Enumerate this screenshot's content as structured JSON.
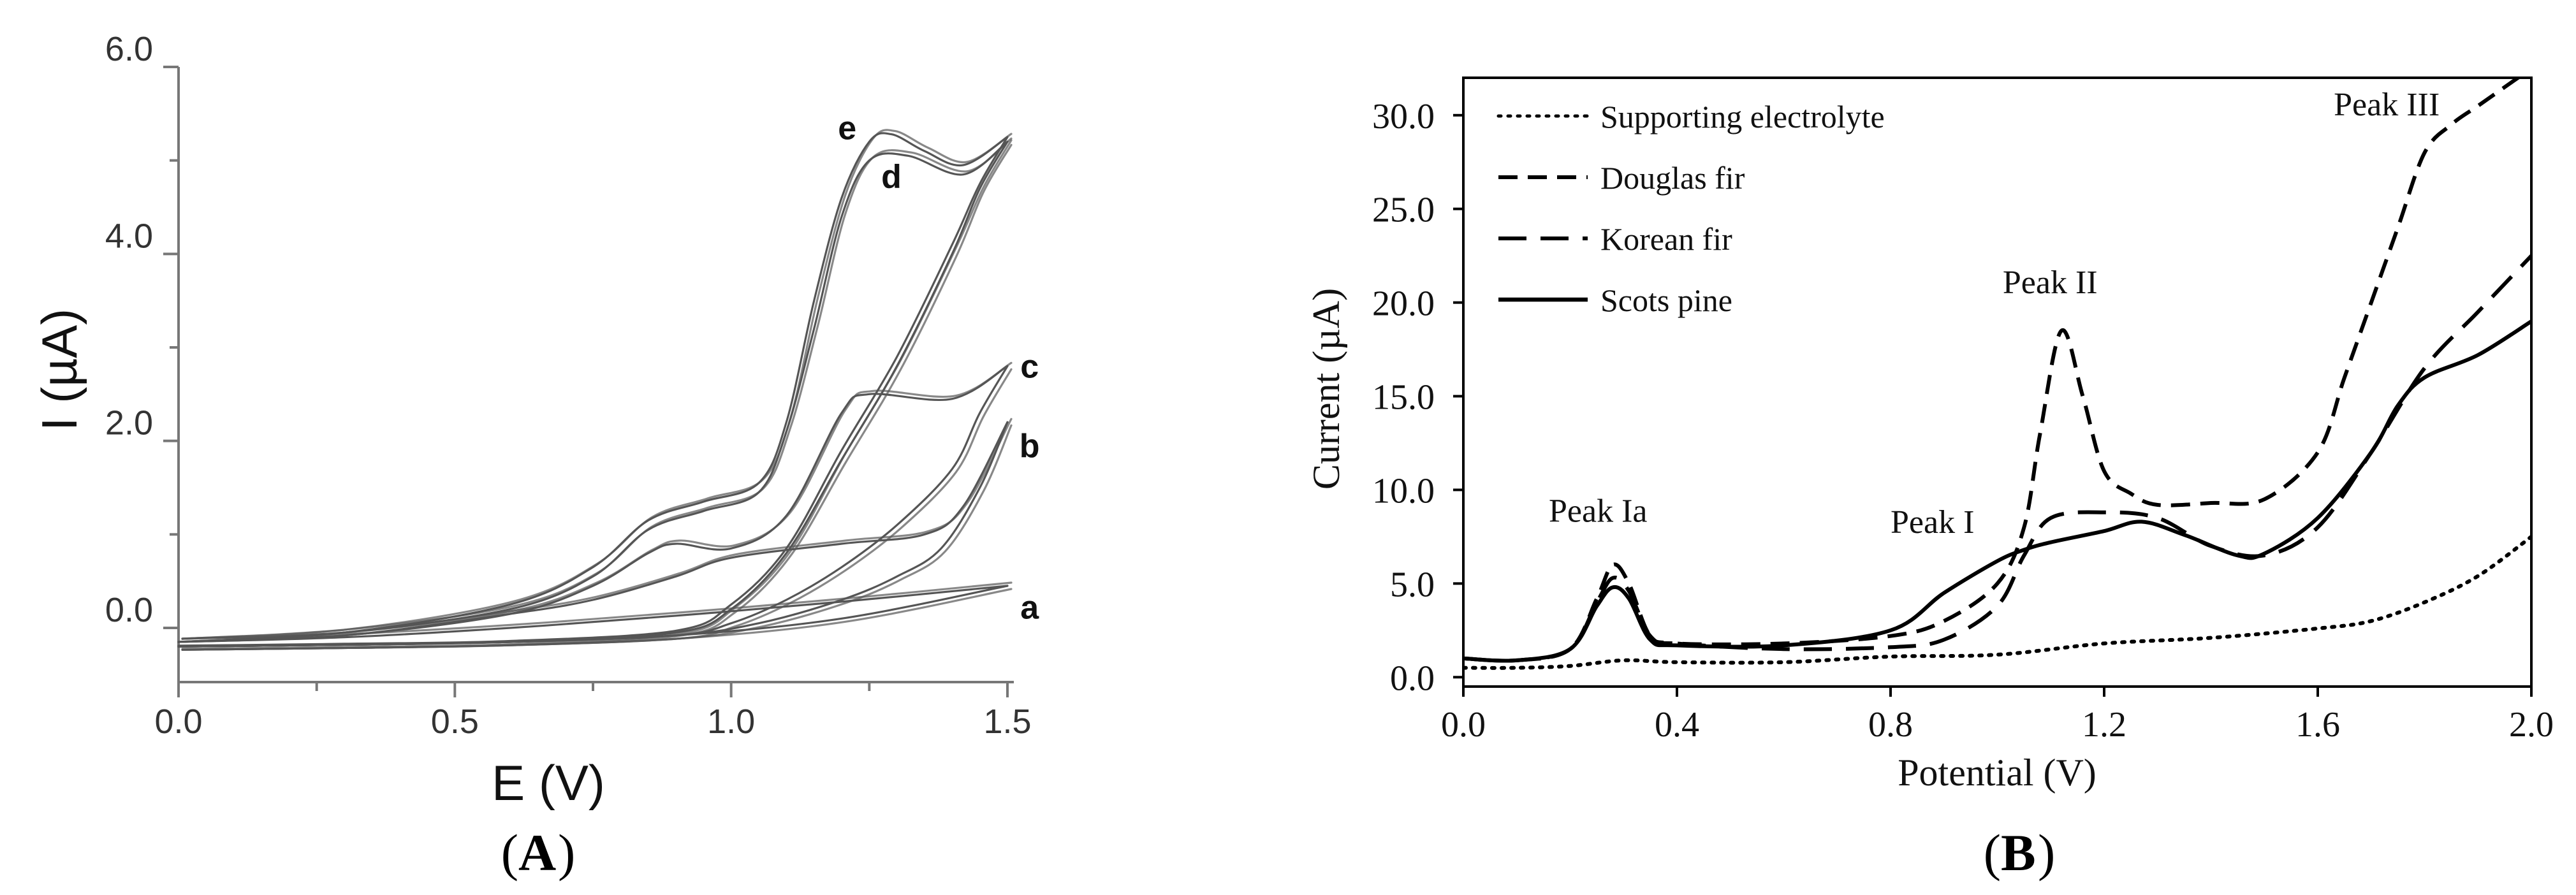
{
  "chart_data": [
    {
      "panel_label": "A",
      "type": "line",
      "title": "",
      "xlabel": "E (V)",
      "ylabel": "I (µA)",
      "xlim": [
        0.0,
        1.5
      ],
      "ylim": [
        -0.6,
        6.0
      ],
      "x_ticks": [
        0.0,
        0.25,
        0.5,
        0.75,
        1.0,
        1.25,
        1.5
      ],
      "x_tick_labels": [
        "0.0",
        "0.5",
        "1.0",
        "1.5"
      ],
      "x_tick_label_values": [
        0.0,
        0.5,
        1.0,
        1.5
      ],
      "y_ticks": [
        0.0,
        1.0,
        2.0,
        3.0,
        4.0,
        5.0,
        6.0
      ],
      "y_tick_labels": [
        "0.0",
        "2.0",
        "4.0",
        "6.0"
      ],
      "y_tick_label_values": [
        0.0,
        2.0,
        4.0,
        6.0
      ],
      "grid": false,
      "series": [
        {
          "name": "a",
          "forward": [
            [
              0.0,
              -0.15
            ],
            [
              0.3,
              -0.1
            ],
            [
              0.6,
              0.0
            ],
            [
              0.9,
              0.13
            ],
            [
              1.2,
              0.28
            ],
            [
              1.5,
              0.45
            ]
          ],
          "reverse": [
            [
              1.5,
              0.45
            ],
            [
              1.2,
              0.1
            ],
            [
              0.9,
              -0.08
            ],
            [
              0.6,
              -0.15
            ],
            [
              0.3,
              -0.18
            ],
            [
              0.0,
              -0.2
            ]
          ]
        },
        {
          "name": "b",
          "forward": [
            [
              0.0,
              -0.15
            ],
            [
              0.3,
              -0.08
            ],
            [
              0.6,
              0.15
            ],
            [
              0.75,
              0.3
            ],
            [
              0.9,
              0.55
            ],
            [
              1.0,
              0.75
            ],
            [
              1.2,
              0.9
            ],
            [
              1.35,
              1.0
            ],
            [
              1.42,
              1.3
            ],
            [
              1.5,
              2.2
            ]
          ],
          "reverse": [
            [
              1.5,
              2.2
            ],
            [
              1.45,
              1.5
            ],
            [
              1.38,
              0.85
            ],
            [
              1.3,
              0.55
            ],
            [
              1.2,
              0.3
            ],
            [
              1.05,
              0.05
            ],
            [
              0.9,
              -0.08
            ],
            [
              0.6,
              -0.15
            ],
            [
              0.3,
              -0.18
            ],
            [
              0.0,
              -0.2
            ]
          ]
        },
        {
          "name": "c",
          "forward": [
            [
              0.0,
              -0.15
            ],
            [
              0.3,
              -0.08
            ],
            [
              0.6,
              0.15
            ],
            [
              0.75,
              0.45
            ],
            [
              0.85,
              0.8
            ],
            [
              0.9,
              0.9
            ],
            [
              1.0,
              0.85
            ],
            [
              1.1,
              1.2
            ],
            [
              1.2,
              2.3
            ],
            [
              1.25,
              2.5
            ],
            [
              1.4,
              2.45
            ],
            [
              1.5,
              2.8
            ]
          ],
          "reverse": [
            [
              1.5,
              2.8
            ],
            [
              1.45,
              2.3
            ],
            [
              1.4,
              1.7
            ],
            [
              1.3,
              1.1
            ],
            [
              1.2,
              0.65
            ],
            [
              1.1,
              0.3
            ],
            [
              1.0,
              0.05
            ],
            [
              0.9,
              -0.08
            ],
            [
              0.6,
              -0.15
            ],
            [
              0.3,
              -0.18
            ],
            [
              0.0,
              -0.2
            ]
          ]
        },
        {
          "name": "d",
          "forward": [
            [
              0.0,
              -0.15
            ],
            [
              0.3,
              -0.05
            ],
            [
              0.6,
              0.2
            ],
            [
              0.75,
              0.55
            ],
            [
              0.85,
              1.05
            ],
            [
              0.95,
              1.25
            ],
            [
              1.05,
              1.45
            ],
            [
              1.1,
              2.1
            ],
            [
              1.15,
              3.2
            ],
            [
              1.2,
              4.4
            ],
            [
              1.25,
              5.0
            ],
            [
              1.32,
              5.05
            ],
            [
              1.42,
              4.85
            ],
            [
              1.5,
              5.2
            ]
          ],
          "reverse": [
            [
              1.5,
              5.2
            ],
            [
              1.45,
              4.7
            ],
            [
              1.4,
              4.0
            ],
            [
              1.3,
              2.8
            ],
            [
              1.2,
              1.8
            ],
            [
              1.1,
              0.8
            ],
            [
              1.0,
              0.2
            ],
            [
              0.9,
              -0.05
            ],
            [
              0.6,
              -0.15
            ],
            [
              0.3,
              -0.18
            ],
            [
              0.0,
              -0.2
            ]
          ]
        },
        {
          "name": "e",
          "forward": [
            [
              0.0,
              -0.15
            ],
            [
              0.3,
              -0.05
            ],
            [
              0.6,
              0.25
            ],
            [
              0.75,
              0.65
            ],
            [
              0.85,
              1.15
            ],
            [
              0.95,
              1.35
            ],
            [
              1.05,
              1.55
            ],
            [
              1.1,
              2.2
            ],
            [
              1.15,
              3.5
            ],
            [
              1.2,
              4.6
            ],
            [
              1.25,
              5.2
            ],
            [
              1.29,
              5.28
            ],
            [
              1.35,
              5.1
            ],
            [
              1.42,
              4.95
            ],
            [
              1.5,
              5.25
            ]
          ],
          "reverse": [
            [
              1.5,
              5.25
            ],
            [
              1.45,
              4.75
            ],
            [
              1.4,
              4.1
            ],
            [
              1.3,
              2.9
            ],
            [
              1.2,
              1.9
            ],
            [
              1.1,
              0.85
            ],
            [
              1.0,
              0.25
            ],
            [
              0.9,
              -0.03
            ],
            [
              0.6,
              -0.14
            ],
            [
              0.3,
              -0.17
            ],
            [
              0.0,
              -0.19
            ]
          ]
        }
      ],
      "annotations": [
        {
          "text": "e",
          "x": 1.21,
          "y": 5.35
        },
        {
          "text": "d",
          "x": 1.29,
          "y": 4.83
        },
        {
          "text": "c",
          "x": 1.54,
          "y": 2.8
        },
        {
          "text": "b",
          "x": 1.54,
          "y": 1.95
        },
        {
          "text": "a",
          "x": 1.54,
          "y": 0.22
        }
      ]
    },
    {
      "panel_label": "B",
      "type": "line",
      "title": "",
      "xlabel": "Potential (V)",
      "ylabel": "Current (µA)",
      "xlim": [
        0.0,
        2.0
      ],
      "ylim": [
        -0.5,
        32.0
      ],
      "x_ticks": [
        0.0,
        0.4,
        0.8,
        1.2,
        1.6,
        2.0
      ],
      "x_tick_labels": [
        "0.0",
        "0.4",
        "0.8",
        "1.2",
        "1.6",
        "2.0"
      ],
      "y_ticks": [
        0.0,
        5.0,
        10.0,
        15.0,
        20.0,
        25.0,
        30.0
      ],
      "y_tick_labels": [
        "0.0",
        "5.0",
        "10.0",
        "15.0",
        "20.0",
        "25.0",
        "30.0"
      ],
      "grid": false,
      "legend_position": "top-left",
      "series": [
        {
          "name": "Supporting electrolyte",
          "style": "dotted",
          "x": [
            0.0,
            0.1,
            0.2,
            0.3,
            0.4,
            0.6,
            0.8,
            1.0,
            1.2,
            1.4,
            1.6,
            1.7,
            1.8,
            1.9,
            2.0
          ],
          "y": [
            0.5,
            0.5,
            0.6,
            0.9,
            0.8,
            0.8,
            1.1,
            1.2,
            1.8,
            2.1,
            2.6,
            3.0,
            4.0,
            5.4,
            7.5
          ]
        },
        {
          "name": "Douglas fir",
          "style": "dashed",
          "x": [
            0.0,
            0.1,
            0.2,
            0.25,
            0.28,
            0.31,
            0.35,
            0.4,
            0.6,
            0.8,
            0.9,
            1.0,
            1.05,
            1.08,
            1.12,
            1.16,
            1.2,
            1.25,
            1.3,
            1.4,
            1.5,
            1.6,
            1.65,
            1.7,
            1.75,
            1.8,
            1.85,
            1.9,
            1.95,
            2.0
          ],
          "y": [
            1.0,
            0.9,
            1.5,
            4.2,
            6.0,
            5.0,
            2.2,
            1.8,
            1.8,
            2.2,
            3.0,
            5.0,
            8.0,
            13.0,
            18.5,
            15.0,
            11.0,
            9.8,
            9.2,
            9.3,
            9.5,
            12.0,
            16.0,
            20.0,
            24.0,
            28.0,
            29.5,
            30.5,
            31.5,
            32.5
          ]
        },
        {
          "name": "Korean fir",
          "style": "dashed-long",
          "x": [
            0.0,
            0.1,
            0.2,
            0.25,
            0.28,
            0.31,
            0.35,
            0.4,
            0.6,
            0.8,
            0.9,
            1.0,
            1.05,
            1.1,
            1.2,
            1.3,
            1.4,
            1.5,
            1.6,
            1.7,
            1.8,
            1.9,
            2.0
          ],
          "y": [
            1.0,
            0.9,
            1.5,
            4.0,
            5.3,
            4.6,
            2.2,
            1.8,
            1.5,
            1.6,
            2.0,
            3.8,
            6.5,
            8.5,
            8.8,
            8.5,
            7.0,
            6.5,
            8.0,
            12.0,
            16.5,
            19.5,
            22.5
          ]
        },
        {
          "name": "Scots pine",
          "style": "solid",
          "x": [
            0.0,
            0.1,
            0.2,
            0.25,
            0.28,
            0.31,
            0.35,
            0.4,
            0.6,
            0.8,
            0.9,
            1.0,
            1.05,
            1.1,
            1.2,
            1.27,
            1.35,
            1.45,
            1.5,
            1.6,
            1.7,
            1.75,
            1.8,
            1.9,
            2.0
          ],
          "y": [
            1.0,
            0.9,
            1.5,
            3.8,
            4.8,
            4.2,
            2.0,
            1.7,
            1.7,
            2.5,
            4.5,
            6.2,
            6.8,
            7.2,
            7.8,
            8.3,
            7.6,
            6.5,
            6.6,
            8.5,
            12.0,
            14.5,
            16.0,
            17.2,
            19.0
          ]
        }
      ],
      "annotations": [
        {
          "text": "Peak Ia",
          "x": 0.16,
          "y": 8.3
        },
        {
          "text": "Peak I",
          "x": 0.8,
          "y": 7.7
        },
        {
          "text": "Peak II",
          "x": 1.01,
          "y": 20.5
        },
        {
          "text": "Peak III",
          "x": 1.63,
          "y": 30.0
        }
      ]
    }
  ]
}
